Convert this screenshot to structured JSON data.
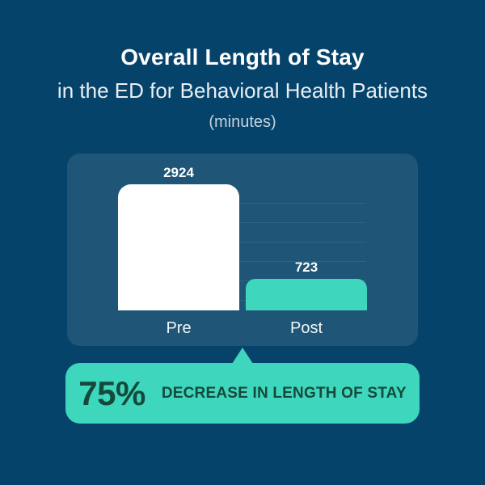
{
  "colors": {
    "bg": "#05436B",
    "panel": "#1F5677",
    "teal": "#3ED6BC",
    "ink-green": "#14493C"
  },
  "header": {
    "title": "Overall Length of Stay",
    "subtitle": "in the ED for Behavioral Health Patients",
    "unit_label": "(minutes)"
  },
  "chart_data": {
    "type": "bar",
    "title": "Overall Length of Stay in the ED for Behavioral Health Patients",
    "unit": "minutes",
    "categories": [
      "Pre",
      "Post"
    ],
    "values": [
      2924,
      723
    ],
    "bar_colors": [
      "#FFFFFF",
      "#3ED6BC"
    ],
    "ylim": [
      0,
      2924
    ],
    "grid": true,
    "gridline_count": 6,
    "legend": "none",
    "value_labels_shown": true,
    "annotation": "75% DECREASE IN LENGTH OF STAY"
  },
  "callout": {
    "percent": "75%",
    "text": "DECREASE IN LENGTH OF STAY"
  }
}
